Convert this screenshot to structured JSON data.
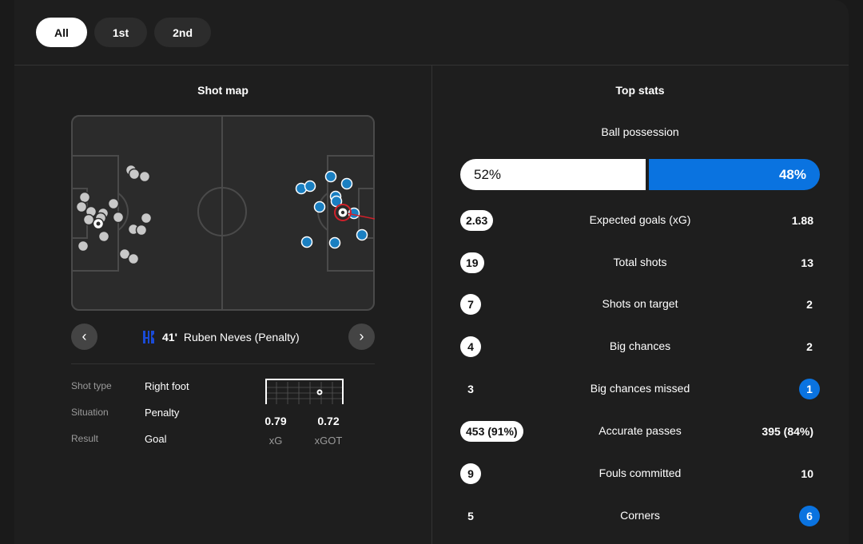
{
  "period_tabs": [
    {
      "label": "All",
      "active": true
    },
    {
      "label": "1st",
      "active": false
    },
    {
      "label": "2nd",
      "active": false
    }
  ],
  "shot_map": {
    "title": "Shot map",
    "selected_shot": {
      "team_icon": "al-hilal-crest-icon",
      "minute": "41'",
      "player": "Ruben Neves (Penalty)",
      "details": [
        {
          "key": "Shot type",
          "value": "Right foot"
        },
        {
          "key": "Situation",
          "value": "Penalty"
        },
        {
          "key": "Result",
          "value": "Goal"
        }
      ],
      "xg": "0.79",
      "xg_label": "xG",
      "xgot": "0.72",
      "xgot_label": "xGOT"
    },
    "colors": {
      "home": "#c8c8c8",
      "away": "#1a7fc1",
      "selected": "#d0202a"
    }
  },
  "top_stats": {
    "title": "Top stats",
    "possession": {
      "label": "Ball possession",
      "home": "52%",
      "away": "48%"
    },
    "rows": [
      {
        "name": "Expected goals (xG)",
        "home": "2.63",
        "away": "1.88",
        "leader": "home"
      },
      {
        "name": "Total shots",
        "home": "19",
        "away": "13",
        "leader": "home"
      },
      {
        "name": "Shots on target",
        "home": "7",
        "away": "2",
        "leader": "home"
      },
      {
        "name": "Big chances",
        "home": "4",
        "away": "2",
        "leader": "home"
      },
      {
        "name": "Big chances missed",
        "home": "3",
        "away": "1",
        "leader": "away"
      },
      {
        "name": "Accurate passes",
        "home": "453 (91%)",
        "away": "395 (84%)",
        "leader": "home"
      },
      {
        "name": "Fouls committed",
        "home": "9",
        "away": "10",
        "leader": "home"
      },
      {
        "name": "Corners",
        "home": "5",
        "away": "6",
        "leader": "away"
      }
    ]
  }
}
